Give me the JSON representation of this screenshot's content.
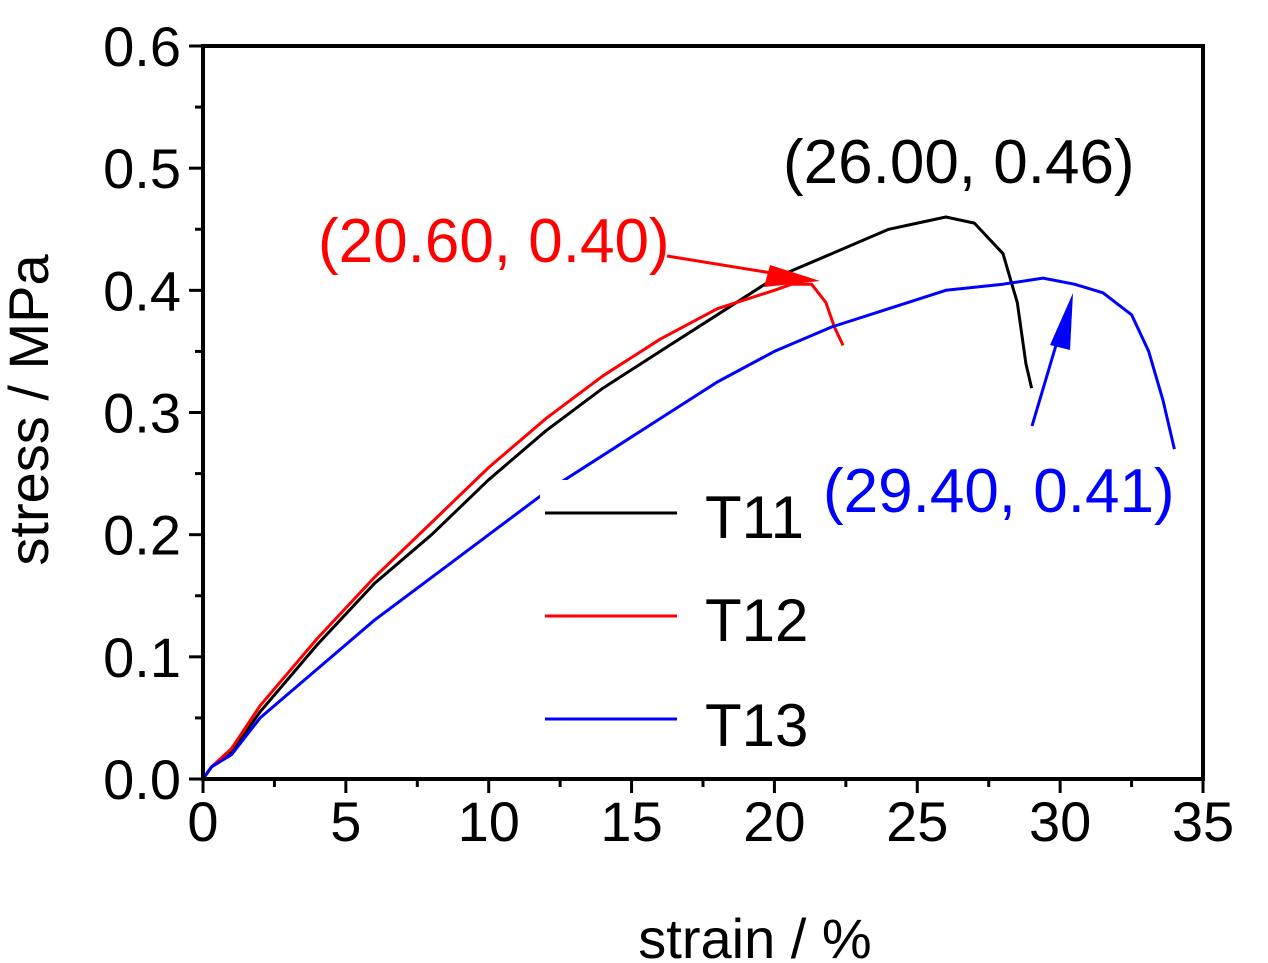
{
  "chart_data": {
    "type": "line",
    "xlabel": "strain / %",
    "ylabel": "stress / MPa",
    "xlim": [
      0,
      35
    ],
    "ylim": [
      0,
      0.6
    ],
    "xticks": [
      "0",
      "5",
      "10",
      "15",
      "20",
      "25",
      "30",
      "35"
    ],
    "yticks": [
      "0.0",
      "0.1",
      "0.2",
      "0.3",
      "0.4",
      "0.5",
      "0.6"
    ],
    "grid": false,
    "legend_position": "center",
    "series": [
      {
        "name": "T11",
        "color": "#000000",
        "points": [
          [
            0,
            0
          ],
          [
            0.3,
            0.01
          ],
          [
            1,
            0.022
          ],
          [
            2,
            0.055
          ],
          [
            4,
            0.11
          ],
          [
            6,
            0.16
          ],
          [
            8,
            0.2
          ],
          [
            10,
            0.245
          ],
          [
            12,
            0.285
          ],
          [
            14,
            0.32
          ],
          [
            16,
            0.35
          ],
          [
            18,
            0.38
          ],
          [
            20,
            0.41
          ],
          [
            22,
            0.43
          ],
          [
            24,
            0.45
          ],
          [
            25,
            0.455
          ],
          [
            26,
            0.46
          ],
          [
            27,
            0.455
          ],
          [
            28,
            0.43
          ],
          [
            28.5,
            0.39
          ],
          [
            28.8,
            0.34
          ],
          [
            29,
            0.32
          ]
        ]
      },
      {
        "name": "T12",
        "color": "#ff0000",
        "points": [
          [
            0,
            0
          ],
          [
            0.3,
            0.01
          ],
          [
            1,
            0.025
          ],
          [
            2,
            0.06
          ],
          [
            4,
            0.115
          ],
          [
            6,
            0.165
          ],
          [
            8,
            0.21
          ],
          [
            10,
            0.255
          ],
          [
            12,
            0.295
          ],
          [
            14,
            0.33
          ],
          [
            16,
            0.36
          ],
          [
            18,
            0.385
          ],
          [
            20,
            0.4
          ],
          [
            20.6,
            0.405
          ],
          [
            21.3,
            0.405
          ],
          [
            21.8,
            0.39
          ],
          [
            22.1,
            0.37
          ],
          [
            22.4,
            0.355
          ]
        ]
      },
      {
        "name": "T13",
        "color": "#0000ff",
        "points": [
          [
            0,
            0
          ],
          [
            0.3,
            0.01
          ],
          [
            1,
            0.02
          ],
          [
            2,
            0.05
          ],
          [
            4,
            0.09
          ],
          [
            6,
            0.13
          ],
          [
            8,
            0.165
          ],
          [
            10,
            0.2
          ],
          [
            12,
            0.235
          ],
          [
            14,
            0.265
          ],
          [
            16,
            0.295
          ],
          [
            18,
            0.325
          ],
          [
            20,
            0.35
          ],
          [
            22,
            0.37
          ],
          [
            24,
            0.385
          ],
          [
            26,
            0.4
          ],
          [
            28,
            0.405
          ],
          [
            29.4,
            0.41
          ],
          [
            30.5,
            0.405
          ],
          [
            31.5,
            0.398
          ],
          [
            32.5,
            0.38
          ],
          [
            33.1,
            0.35
          ],
          [
            33.6,
            0.31
          ],
          [
            34,
            0.27
          ]
        ]
      }
    ],
    "annotations": [
      {
        "text": "(26.00, 0.46)",
        "color": "#000000",
        "x": 26,
        "y": 0.46
      },
      {
        "text": "(20.60, 0.40)",
        "color": "#ff0000",
        "x": 20.6,
        "y": 0.4
      },
      {
        "text": "(29.40, 0.41)",
        "color": "#0000ff",
        "x": 29.4,
        "y": 0.41
      }
    ]
  }
}
